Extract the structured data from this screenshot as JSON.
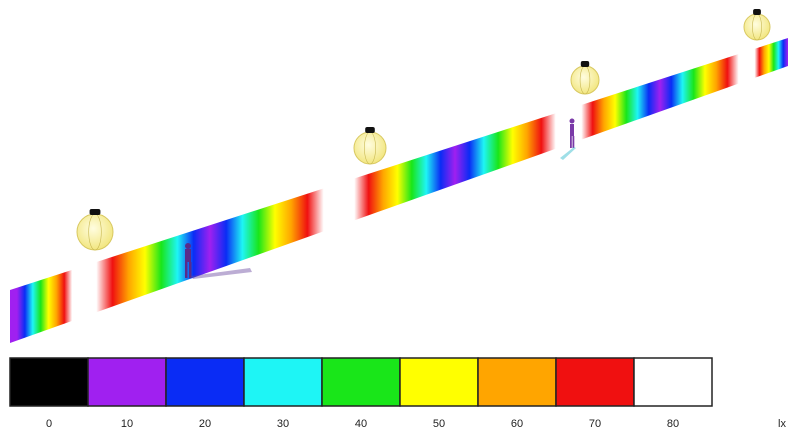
{
  "legend": {
    "unit": "lx",
    "levels": [
      {
        "label": 0,
        "color": "#000000"
      },
      {
        "label": 10,
        "color": "#a020f0"
      },
      {
        "label": 20,
        "color": "#0a2cf5"
      },
      {
        "label": 30,
        "color": "#1ef5f5"
      },
      {
        "label": 40,
        "color": "#19e619"
      },
      {
        "label": 50,
        "color": "#ffff00"
      },
      {
        "label": 60,
        "color": "#ffa500"
      },
      {
        "label": 70,
        "color": "#f01010"
      },
      {
        "label": 80,
        "color": "#ffffff"
      }
    ]
  }
}
